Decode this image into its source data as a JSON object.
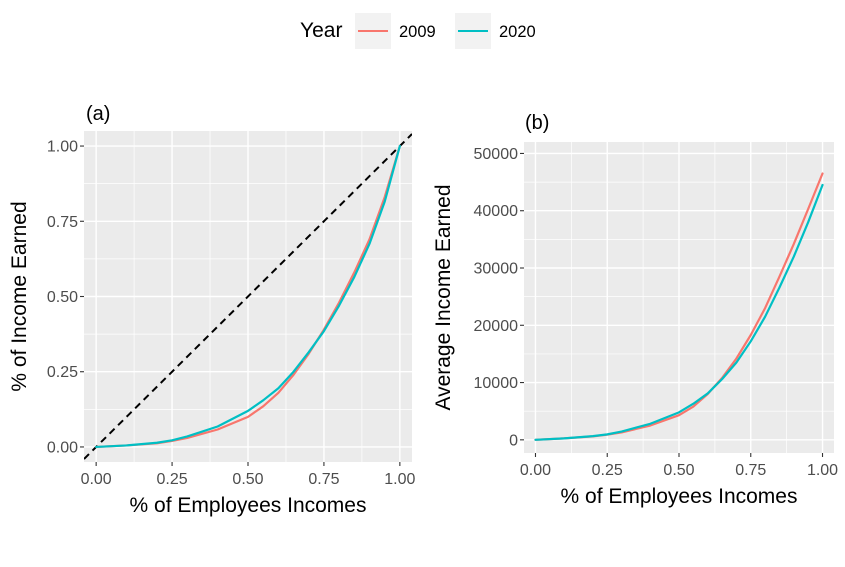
{
  "legend": {
    "title": "Year",
    "items": [
      {
        "label": "2009",
        "color": "#F8766D"
      },
      {
        "label": "2020",
        "color": "#00BFC4"
      }
    ]
  },
  "chart_data": [
    {
      "type": "line",
      "panel_tag": "(a)",
      "title": "",
      "xlabel": "% of Employees Incomes",
      "ylabel": "% of Income Earned",
      "xlim": [
        -0.04,
        1.04
      ],
      "ylim": [
        -0.05,
        1.05
      ],
      "xticks": [
        0,
        0.25,
        0.5,
        0.75,
        1
      ],
      "xtick_labels": [
        "0.00",
        "0.25",
        "0.50",
        "0.75",
        "1.00"
      ],
      "yticks": [
        0,
        0.25,
        0.5,
        0.75,
        1
      ],
      "ytick_labels": [
        "0.00",
        "0.25",
        "0.50",
        "0.75",
        "1.00"
      ],
      "grid": true,
      "reference_line": {
        "style": "dashed",
        "color": "#000000",
        "from": [
          -0.04,
          -0.04
        ],
        "to": [
          1.04,
          1.04
        ]
      },
      "x": [
        0,
        0.1,
        0.2,
        0.25,
        0.3,
        0.4,
        0.5,
        0.55,
        0.6,
        0.65,
        0.7,
        0.75,
        0.8,
        0.85,
        0.9,
        0.95,
        1
      ],
      "series": [
        {
          "name": "2009",
          "color": "#F8766D",
          "values": [
            0,
            0.005,
            0.012,
            0.02,
            0.03,
            0.058,
            0.1,
            0.135,
            0.18,
            0.24,
            0.31,
            0.39,
            0.48,
            0.58,
            0.69,
            0.83,
            1
          ]
        },
        {
          "name": "2020",
          "color": "#00BFC4",
          "values": [
            0,
            0.005,
            0.014,
            0.022,
            0.035,
            0.068,
            0.12,
            0.155,
            0.195,
            0.25,
            0.315,
            0.385,
            0.47,
            0.565,
            0.675,
            0.815,
            1
          ]
        }
      ]
    },
    {
      "type": "line",
      "panel_tag": "(b)",
      "title": "",
      "xlabel": "% of Employees Incomes",
      "ylabel": "Average Income Earned",
      "xlim": [
        -0.04,
        1.04
      ],
      "ylim": [
        -2300,
        52000
      ],
      "xticks": [
        0,
        0.25,
        0.5,
        0.75,
        1
      ],
      "xtick_labels": [
        "0.00",
        "0.25",
        "0.50",
        "0.75",
        "1.00"
      ],
      "yticks": [
        0,
        10000,
        20000,
        30000,
        40000,
        50000
      ],
      "ytick_labels": [
        "0",
        "10000",
        "20000",
        "30000",
        "40000",
        "50000"
      ],
      "grid": true,
      "x": [
        0,
        0.1,
        0.2,
        0.25,
        0.3,
        0.4,
        0.5,
        0.55,
        0.6,
        0.65,
        0.7,
        0.75,
        0.8,
        0.85,
        0.9,
        0.95,
        1
      ],
      "series": [
        {
          "name": "2009",
          "color": "#F8766D",
          "values": [
            0,
            250,
            600,
            900,
            1300,
            2500,
            4300,
            5800,
            8000,
            10800,
            14200,
            18300,
            23000,
            28500,
            34200,
            40300,
            46500
          ]
        },
        {
          "name": "2020",
          "color": "#00BFC4",
          "values": [
            0,
            250,
            650,
            950,
            1450,
            2800,
            4800,
            6300,
            8100,
            10600,
            13500,
            17200,
            21500,
            26600,
            32000,
            38000,
            44500
          ]
        }
      ]
    }
  ]
}
